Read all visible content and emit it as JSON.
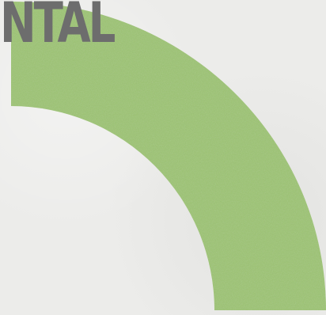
{
  "headline": {
    "text": "NTAL",
    "color": "#6d6d6d"
  },
  "graphic": {
    "shape": "quarter-circle-arc",
    "fill": "#9dc472",
    "background": "#ececea"
  }
}
